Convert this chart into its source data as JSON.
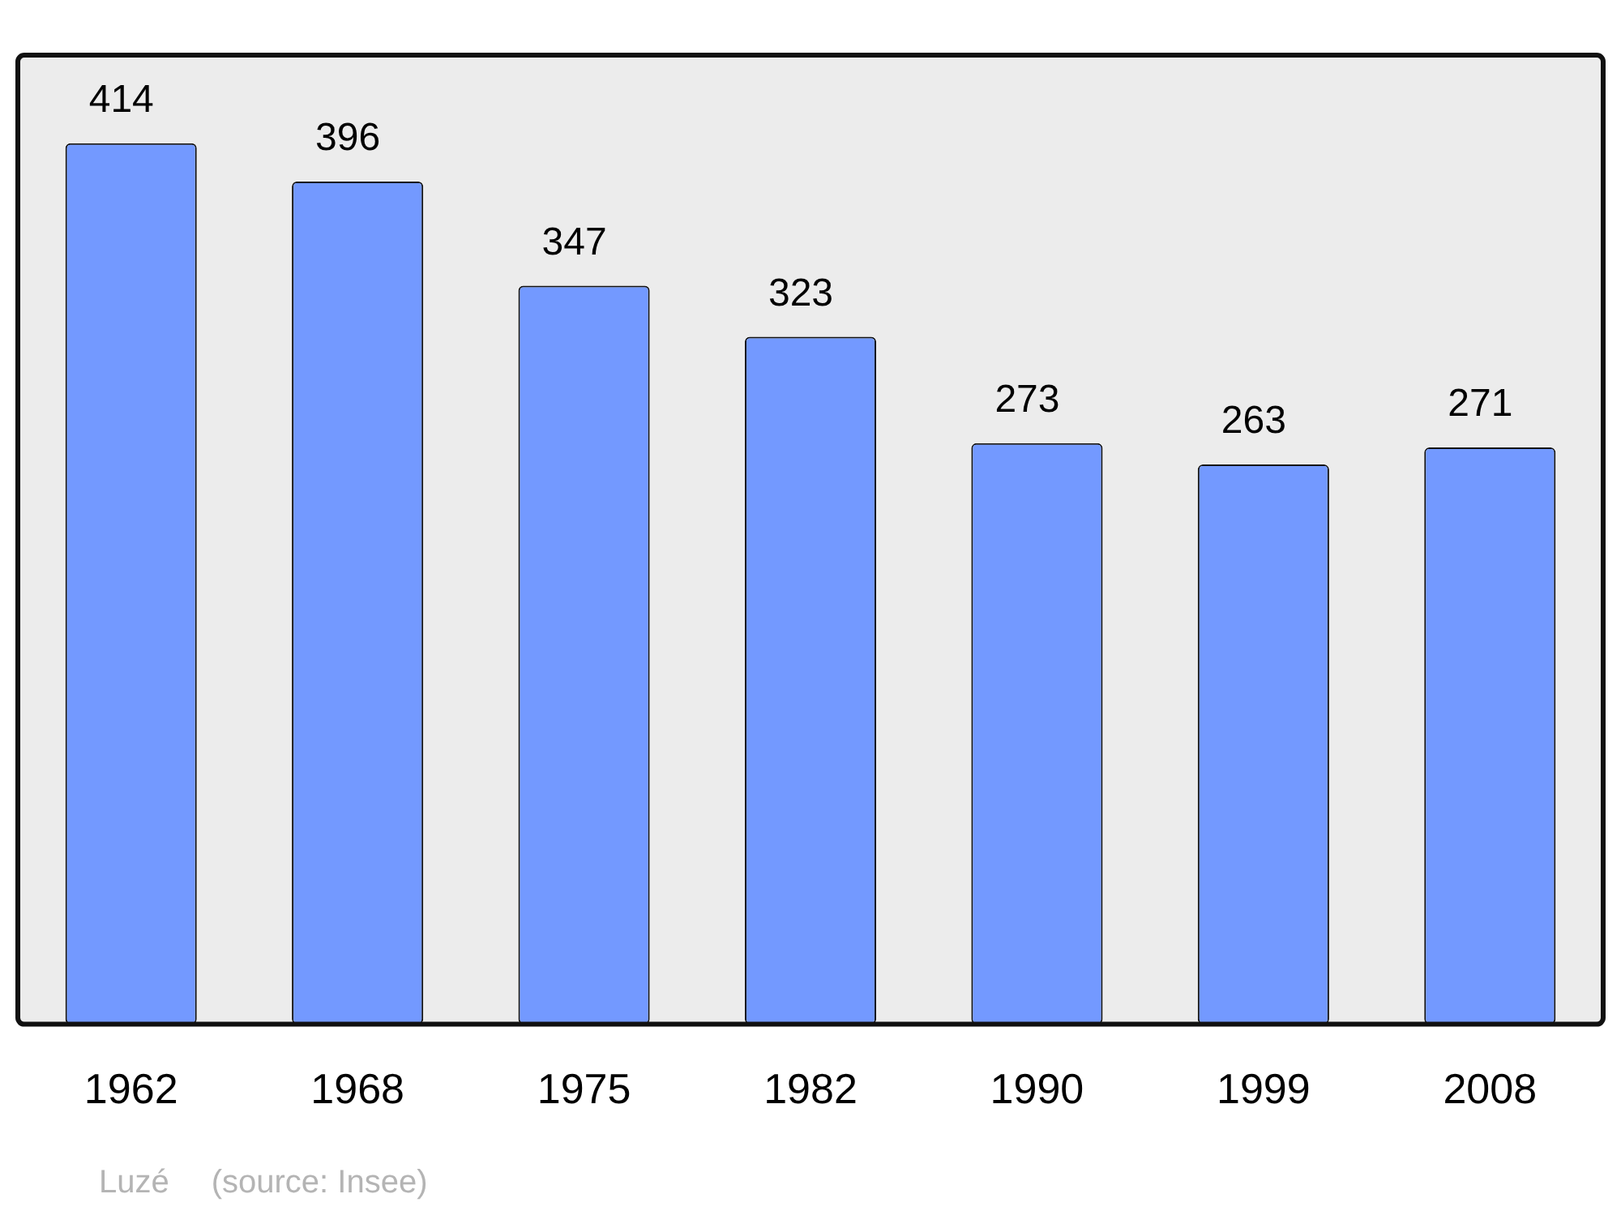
{
  "chart_data": {
    "type": "bar",
    "categories": [
      "1962",
      "1968",
      "1975",
      "1982",
      "1990",
      "1999",
      "2008"
    ],
    "values": [
      414,
      396,
      347,
      323,
      273,
      263,
      271
    ],
    "color": "#7399ff",
    "data_labels": true,
    "legend": false,
    "grid": false,
    "annotations": [
      "Luzé",
      "(source: Insee)"
    ]
  }
}
